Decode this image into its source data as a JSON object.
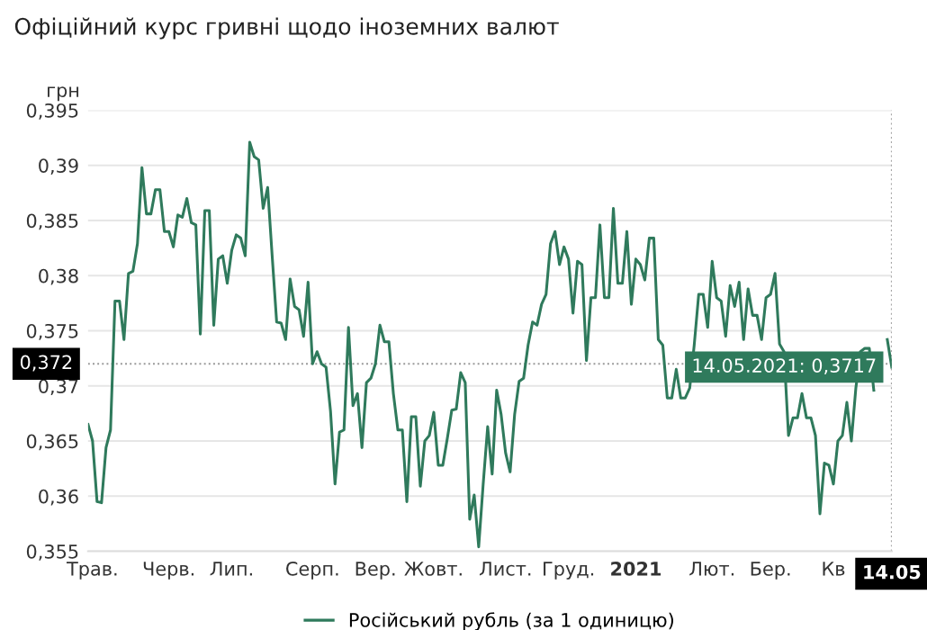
{
  "chart_data": {
    "type": "line",
    "title": "Офіційний курс гривні щодо іноземних валют",
    "ylabel": "грн",
    "categories": [
      null,
      "Трав.",
      null,
      null,
      null,
      null,
      null,
      null,
      null,
      null,
      null,
      null,
      null,
      null,
      null,
      null,
      null,
      null,
      "Черв.",
      null,
      null,
      null,
      null,
      null,
      null,
      null,
      null,
      null,
      null,
      null,
      null,
      null,
      "Лип.",
      null,
      null,
      null,
      null,
      null,
      null,
      null,
      null,
      null,
      null,
      null,
      null,
      null,
      null,
      null,
      null,
      null,
      "Серп.",
      null,
      null,
      null,
      null,
      null,
      null,
      null,
      null,
      null,
      null,
      null,
      null,
      null,
      "Вер.",
      null,
      null,
      null,
      null,
      null,
      null,
      null,
      null,
      null,
      null,
      null,
      null,
      "Жовт.",
      null,
      null,
      null,
      null,
      null,
      null,
      null,
      null,
      null,
      null,
      null,
      null,
      null,
      null,
      null,
      "Лист.",
      null,
      null,
      null,
      null,
      null,
      null,
      null,
      null,
      null,
      null,
      null,
      null,
      null,
      "Груд.",
      null,
      null,
      null,
      null,
      null,
      null,
      null,
      null,
      null,
      null,
      null,
      null,
      null,
      null,
      "2021",
      null,
      null,
      null,
      null,
      null,
      null,
      null,
      null,
      null,
      null,
      null,
      null,
      null,
      null,
      null,
      null,
      "Лют.",
      null,
      null,
      null,
      null,
      null,
      null,
      null,
      null,
      null,
      null,
      null,
      null,
      "Бер.",
      null,
      null,
      null,
      null,
      null,
      null,
      null,
      null,
      null,
      null,
      null,
      null,
      null,
      "Кв",
      null,
      null,
      null,
      null,
      null,
      null,
      null,
      null,
      null,
      null,
      null,
      null,
      "14.05"
    ],
    "series": [
      {
        "name": "Російський рубль (за 1 одиницю)",
        "color": "#2f7a5c",
        "values": [
          0.3665,
          0.365,
          0.3595,
          0.3594,
          0.3644,
          0.366,
          0.3777,
          0.3777,
          0.3742,
          0.3802,
          0.3804,
          0.3829,
          0.3898,
          0.3856,
          0.3856,
          0.3878,
          0.3878,
          0.384,
          0.384,
          0.3826,
          0.3855,
          0.3853,
          0.387,
          0.3848,
          0.3846,
          0.3747,
          0.3859,
          0.3859,
          0.3755,
          0.3815,
          0.3818,
          0.3793,
          0.3823,
          0.3837,
          0.3834,
          0.3818,
          0.3921,
          0.3908,
          0.3905,
          0.3861,
          0.388,
          0.3818,
          0.3758,
          0.3757,
          0.3742,
          0.3797,
          0.3772,
          0.3769,
          0.3745,
          0.3794,
          0.372,
          0.3731,
          0.372,
          0.3717,
          0.3677,
          0.3611,
          0.3658,
          0.366,
          0.3753,
          0.3682,
          0.3693,
          0.3644,
          0.3703,
          0.3707,
          0.372,
          0.3755,
          0.374,
          0.374,
          0.3693,
          0.366,
          0.366,
          0.3595,
          0.3672,
          0.3672,
          0.3609,
          0.365,
          0.3655,
          0.3676,
          0.3628,
          0.3628,
          0.3652,
          0.3678,
          0.3679,
          0.3712,
          0.3703,
          0.3579,
          0.3601,
          0.3554,
          0.3611,
          0.3663,
          0.362,
          0.3696,
          0.3674,
          0.3639,
          0.3622,
          0.3674,
          0.3704,
          0.3707,
          0.3737,
          0.3758,
          0.3755,
          0.3774,
          0.3783,
          0.3829,
          0.384,
          0.381,
          0.3826,
          0.3815,
          0.3766,
          0.3813,
          0.381,
          0.3723,
          0.378,
          0.378,
          0.3846,
          0.378,
          0.378,
          0.3861,
          0.3793,
          0.3793,
          0.384,
          0.3774,
          0.3815,
          0.381,
          0.3796,
          0.3834,
          0.3834,
          0.3742,
          0.3737,
          0.3689,
          0.3689,
          0.3715,
          0.3689,
          0.3689,
          0.3698,
          0.3737,
          0.3783,
          0.3783,
          0.3753,
          0.3813,
          0.378,
          0.3777,
          0.3745,
          0.3791,
          0.3772,
          0.3794,
          0.3742,
          0.3788,
          0.3764,
          0.3764,
          0.3742,
          0.378,
          0.3783,
          0.3802,
          0.3738,
          0.3731,
          0.3655,
          0.3671,
          0.3671,
          0.3693,
          0.3671,
          0.3671,
          0.3655,
          0.3584,
          0.363,
          0.3628,
          0.3611,
          0.365,
          0.3655,
          0.3685,
          0.365,
          0.3698,
          0.3731,
          0.3734,
          0.3734,
          0.3696,
          null,
          null,
          0.3742,
          0.3717
        ]
      }
    ],
    "ylim": [
      0.355,
      0.395
    ],
    "yticks": [
      {
        "value": 0.355,
        "label": "0,355"
      },
      {
        "value": 0.36,
        "label": "0,36"
      },
      {
        "value": 0.365,
        "label": "0,365"
      },
      {
        "value": 0.37,
        "label": "0,37"
      },
      {
        "value": 0.375,
        "label": "0,375"
      },
      {
        "value": 0.38,
        "label": "0,38"
      },
      {
        "value": 0.385,
        "label": "0,385"
      },
      {
        "value": 0.39,
        "label": "0,39"
      },
      {
        "value": 0.395,
        "label": "0,395"
      }
    ],
    "ref_lines": [
      {
        "axis": "y",
        "value": 0.372,
        "label": "0,372",
        "color": "#999999",
        "line_style": "dotted"
      },
      {
        "axis": "x",
        "value": "14.05",
        "label": "14.05",
        "color": "#999999",
        "line_style": "dotted"
      }
    ],
    "annotations": [
      {
        "text": "14.05.2021: 0,3717",
        "x": "14.05",
        "y": 0.3717
      }
    ],
    "grid": "y",
    "legend": "bottom",
    "line_style": "solid",
    "marker": "none"
  }
}
